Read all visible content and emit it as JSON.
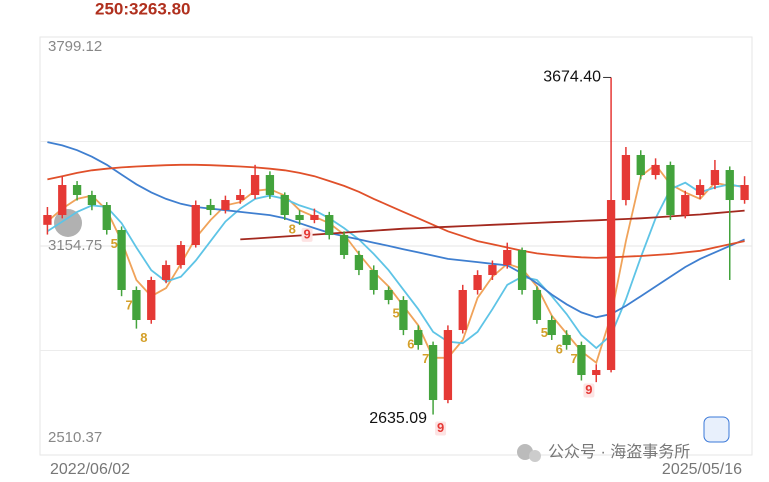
{
  "chart_data": {
    "type": "candlestick",
    "ma_label": "250:3263.80",
    "categories": [
      "2022/06/02",
      null,
      null,
      null,
      null,
      null,
      null,
      null,
      null,
      null,
      null,
      null,
      null,
      null,
      null,
      null,
      null,
      null,
      null,
      null,
      null,
      null,
      null,
      null,
      null,
      null,
      null,
      null,
      null,
      null,
      null,
      null,
      null,
      null,
      null,
      null,
      null,
      null,
      null,
      null,
      null,
      null,
      null,
      null,
      null,
      null,
      null,
      "2025/05/16"
    ],
    "open": [
      3220.0,
      3250.3,
      3342.8,
      3312.0,
      3281.1,
      3204.1,
      3019.1,
      2926.6,
      3049.9,
      3096.1,
      3157.8,
      3281.1,
      3265.7,
      3296.5,
      3312.0,
      3373.6,
      3312.0,
      3250.3,
      3234.9,
      3250.3,
      3188.6,
      3127.0,
      3080.7,
      3019.1,
      2988.2,
      2895.7,
      2849.5,
      2679.9,
      2895.7,
      3019.1,
      3065.3,
      3096.1,
      3142.4,
      3019.1,
      2926.6,
      2880.3,
      2849.5,
      2757.0,
      2772.4,
      3296.5,
      3435.3,
      3373.6,
      3404.5,
      3250.3,
      3312.0,
      3342.8,
      3389.0,
      3296.5
    ],
    "high": [
      3275.0,
      3370.0,
      3355.0,
      3325.0,
      3290.0,
      3215.0,
      3030.0,
      3060.0,
      3110.0,
      3170.0,
      3295.0,
      3300.0,
      3310.0,
      3330.0,
      3405.0,
      3385.0,
      3320.0,
      3265.0,
      3270.0,
      3260.0,
      3200.0,
      3140.0,
      3095.0,
      3030.0,
      3000.0,
      2910.0,
      2860.0,
      2910.0,
      3035.0,
      3080.0,
      3110.0,
      3165.0,
      3150.0,
      3030.0,
      2940.0,
      2895.0,
      2860.0,
      2790.0,
      3674.4,
      3460.0,
      3450.0,
      3425.0,
      3415.0,
      3325.0,
      3360.0,
      3420.0,
      3400.0,
      3370.0
    ],
    "low": [
      3190.0,
      3240.0,
      3295.0,
      3265.0,
      3190.0,
      3000.0,
      2900.0,
      2915.0,
      3040.0,
      3085.0,
      3150.0,
      3250.0,
      3255.0,
      3285.0,
      3300.0,
      3300.0,
      3235.0,
      3220.0,
      3225.0,
      3175.0,
      3115.0,
      3065.0,
      3005.0,
      2975.0,
      2880.0,
      2835.0,
      2635.09,
      2670.0,
      2885.0,
      3005.0,
      3050.0,
      3085.0,
      3005.0,
      2915.0,
      2865.0,
      2835.0,
      2740.0,
      2735.0,
      2765.0,
      3280.0,
      3360.0,
      3360.0,
      3235.0,
      3240.0,
      3300.0,
      3330.0,
      3050.0,
      3285.0
    ],
    "close": [
      3250.3,
      3342.8,
      3312.0,
      3281.1,
      3204.1,
      3019.1,
      2926.6,
      3049.9,
      3096.1,
      3157.8,
      3281.1,
      3265.7,
      3296.5,
      3312.0,
      3373.6,
      3312.0,
      3250.3,
      3234.9,
      3250.3,
      3188.6,
      3127.0,
      3080.7,
      3019.1,
      2988.2,
      2895.7,
      2849.5,
      2679.9,
      2895.7,
      3019.1,
      3065.3,
      3096.1,
      3142.4,
      3019.1,
      2926.6,
      2880.3,
      2849.5,
      2757.0,
      2772.4,
      3296.5,
      3435.3,
      3373.6,
      3404.5,
      3250.3,
      3312.0,
      3342.8,
      3389.0,
      3296.5,
      3342.8
    ],
    "up_color": "#e53935",
    "down_color": "#43a33c",
    "ma_lines": [
      {
        "color": "#f0a35a",
        "values": [
          3230,
          3270,
          3300,
          3310,
          3265,
          3170,
          3050,
          3000,
          3025,
          3100,
          3180,
          3235,
          3280,
          3290,
          3325,
          3330,
          3310,
          3265,
          3245,
          3225,
          3190,
          3130,
          3075,
          3030,
          2970,
          2910,
          2810,
          2810,
          2865,
          2995,
          3060,
          3100,
          3085,
          3030,
          2940,
          2885,
          2830,
          2795,
          2940,
          3170,
          3370,
          3405,
          3345,
          3320,
          3300,
          3350,
          3340,
          3340
        ]
      },
      {
        "color": "#5ec4e6",
        "values": [
          3200,
          3230,
          3260,
          3280,
          3275,
          3225,
          3150,
          3080,
          3045,
          3060,
          3110,
          3170,
          3230,
          3270,
          3300,
          3310,
          3300,
          3280,
          3265,
          3240,
          3210,
          3175,
          3130,
          3080,
          3020,
          2960,
          2890,
          2860,
          2855,
          2890,
          2960,
          3035,
          3060,
          3050,
          3000,
          2945,
          2880,
          2840,
          2880,
          2990,
          3120,
          3240,
          3330,
          3350,
          3320,
          3335,
          3345,
          3335
        ]
      },
      {
        "color": "#3f7fd0",
        "values": [
          3475,
          3465,
          3450,
          3430,
          3405,
          3375,
          3345,
          3320,
          3300,
          3285,
          3275,
          3270,
          3265,
          3260,
          3255,
          3250,
          3240,
          3225,
          3210,
          3195,
          3185,
          3175,
          3165,
          3155,
          3145,
          3135,
          3125,
          3115,
          3110,
          3105,
          3100,
          3095,
          3070,
          3040,
          3005,
          2975,
          2950,
          2935,
          2945,
          2970,
          3000,
          3030,
          3060,
          3090,
          3115,
          3135,
          3155,
          3175
        ]
      },
      {
        "color": "#e0502a",
        "values": [
          3360,
          3370,
          3380,
          3388,
          3393,
          3397,
          3400,
          3402,
          3404,
          3405,
          3405,
          3404,
          3402,
          3400,
          3397,
          3393,
          3388,
          3380,
          3370,
          3355,
          3340,
          3322,
          3300,
          3280,
          3260,
          3240,
          3220,
          3200,
          3185,
          3170,
          3160,
          3150,
          3140,
          3132,
          3127,
          3123,
          3120,
          3118,
          3120,
          3122,
          3124,
          3127,
          3130,
          3135,
          3140,
          3150,
          3160,
          3170
        ]
      },
      {
        "color": "#a3281e",
        "values": [
          null,
          null,
          null,
          null,
          null,
          null,
          null,
          null,
          null,
          null,
          null,
          null,
          null,
          3175,
          3178,
          3181,
          3184,
          3187,
          3190,
          3193,
          3196,
          3199,
          3202,
          3205,
          3208,
          3210,
          3212,
          3214,
          3216,
          3218,
          3220,
          3222,
          3224,
          3226,
          3228,
          3230,
          3232,
          3234,
          3236,
          3238,
          3240,
          3243,
          3246,
          3249,
          3252,
          3256,
          3260,
          3263.8
        ]
      }
    ],
    "ylim": [
      2510.37,
      3799.12
    ],
    "yticks": [
      2510.37,
      3154.75,
      3799.12
    ],
    "high_label": "3674.40",
    "low_label": "2635.09",
    "td_labels": [
      {
        "index": 4,
        "text": "5"
      },
      {
        "index": 5,
        "text": "7"
      },
      {
        "index": 6,
        "text": "8"
      },
      {
        "index": 16,
        "text": "8"
      },
      {
        "index": 17,
        "text": "9"
      },
      {
        "index": 23,
        "text": "5"
      },
      {
        "index": 24,
        "text": "6"
      },
      {
        "index": 25,
        "text": "7"
      },
      {
        "index": 26,
        "text": "9"
      },
      {
        "index": 33,
        "text": "5"
      },
      {
        "index": 34,
        "text": "6"
      },
      {
        "index": 35,
        "text": "7"
      },
      {
        "index": 36,
        "text": "9"
      }
    ]
  },
  "watermark": "公众号 · 海盗事务所"
}
